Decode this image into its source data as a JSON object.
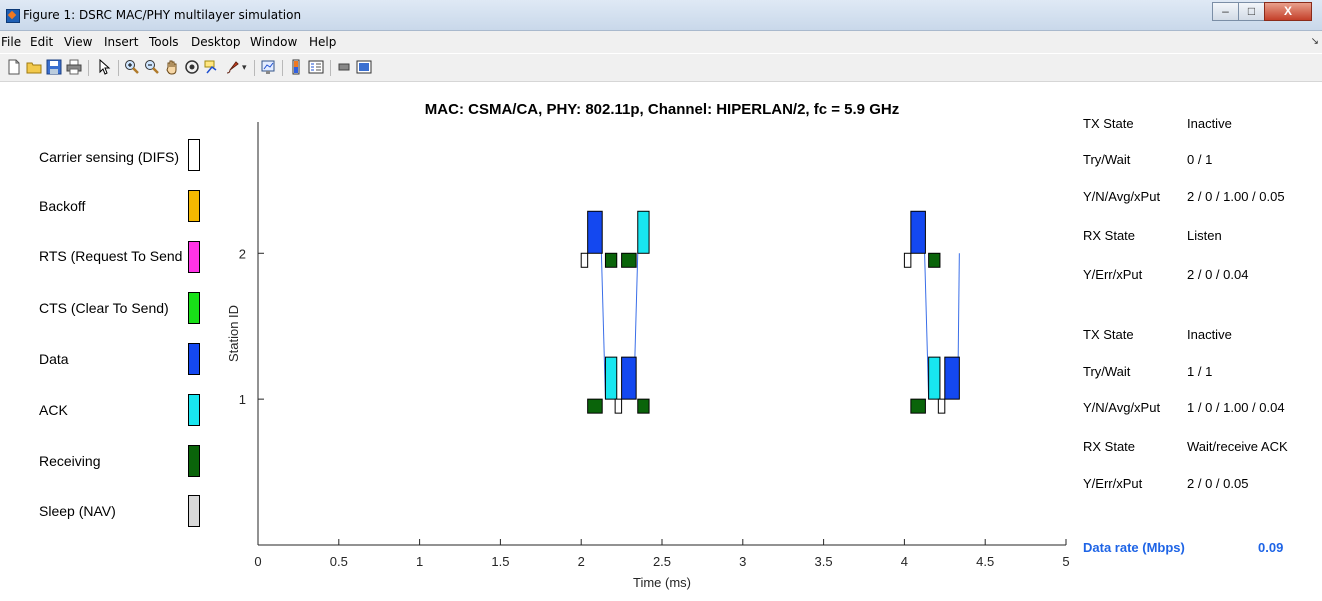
{
  "window": {
    "title": "Figure 1: DSRC MAC/PHY multilayer simulation",
    "controls": [
      "–",
      "□",
      "X"
    ]
  },
  "menu": [
    "File",
    "Edit",
    "View",
    "Insert",
    "Tools",
    "Desktop",
    "Window",
    "Help"
  ],
  "toolbar": [
    {
      "icon": "new-file-icon"
    },
    {
      "icon": "open-folder-icon"
    },
    {
      "icon": "save-icon"
    },
    {
      "icon": "print-icon"
    },
    {
      "icon": "pointer-icon"
    },
    {
      "icon": "zoom-in-icon"
    },
    {
      "icon": "zoom-out-icon"
    },
    {
      "icon": "pan-hand-icon"
    },
    {
      "icon": "rotate-3d-icon"
    },
    {
      "icon": "data-cursor-icon"
    },
    {
      "icon": "brush-icon"
    },
    {
      "icon": "link-plot-icon"
    },
    {
      "icon": "colorbar-icon"
    },
    {
      "icon": "legend-icon"
    },
    {
      "icon": "hide-plot-tools-icon"
    },
    {
      "icon": "show-plot-tools-icon"
    }
  ],
  "legend": [
    {
      "label": "Carrier sensing (DIFS)",
      "color": "#ffffff"
    },
    {
      "label": "Backoff",
      "color": "#f5b800"
    },
    {
      "label": "RTS (Request To Send",
      "color": "#ff33e6"
    },
    {
      "label": "CTS (Clear To Send)",
      "color": "#18e018"
    },
    {
      "label": "Data",
      "color": "#1448f0"
    },
    {
      "label": "ACK",
      "color": "#18e6f0"
    },
    {
      "label": "Receiving",
      "color": "#0a640a"
    },
    {
      "label": "Sleep (NAV)",
      "color": "#d8d8d8"
    }
  ],
  "chart_data": {
    "type": "timeline",
    "title": "MAC: CSMA/CA, PHY: 802.11p, Channel: HIPERLAN/2, fc = 5.9 GHz",
    "xlabel": "Time (ms)",
    "ylabel": "Station ID",
    "xlim": [
      0,
      5
    ],
    "xticks": [
      0,
      0.5,
      1,
      1.5,
      2,
      2.5,
      3,
      3.5,
      4,
      4.5,
      5
    ],
    "yticks": [
      1,
      2
    ],
    "ylim": [
      0,
      2.9
    ],
    "grid": false,
    "segments": [
      {
        "station": 2,
        "state": "Carrier sensing (DIFS)",
        "start": 2.0,
        "end": 2.04,
        "level": "low"
      },
      {
        "station": 2,
        "state": "Data",
        "start": 2.04,
        "end": 2.13,
        "level": "high"
      },
      {
        "station": 2,
        "state": "Receiving",
        "start": 2.15,
        "end": 2.22,
        "level": "low"
      },
      {
        "station": 2,
        "state": "Receiving",
        "start": 2.25,
        "end": 2.34,
        "level": "low"
      },
      {
        "station": 2,
        "state": "ACK",
        "start": 2.35,
        "end": 2.42,
        "level": "high"
      },
      {
        "station": 1,
        "state": "Receiving",
        "start": 2.04,
        "end": 2.13,
        "level": "low"
      },
      {
        "station": 1,
        "state": "ACK",
        "start": 2.15,
        "end": 2.22,
        "level": "high"
      },
      {
        "station": 1,
        "state": "Carrier sensing (DIFS)",
        "start": 2.21,
        "end": 2.25,
        "level": "low"
      },
      {
        "station": 1,
        "state": "Data",
        "start": 2.25,
        "end": 2.34,
        "level": "high"
      },
      {
        "station": 1,
        "state": "Receiving",
        "start": 2.35,
        "end": 2.42,
        "level": "low"
      },
      {
        "station": 2,
        "state": "Carrier sensing (DIFS)",
        "start": 4.0,
        "end": 4.04,
        "level": "low"
      },
      {
        "station": 2,
        "state": "Data",
        "start": 4.04,
        "end": 4.13,
        "level": "high"
      },
      {
        "station": 2,
        "state": "Receiving",
        "start": 4.15,
        "end": 4.22,
        "level": "low"
      },
      {
        "station": 1,
        "state": "Receiving",
        "start": 4.04,
        "end": 4.13,
        "level": "low"
      },
      {
        "station": 1,
        "state": "ACK",
        "start": 4.15,
        "end": 4.22,
        "level": "high"
      },
      {
        "station": 1,
        "state": "Carrier sensing (DIFS)",
        "start": 4.21,
        "end": 4.25,
        "level": "low"
      },
      {
        "station": 1,
        "state": "Data",
        "start": 4.25,
        "end": 4.34,
        "level": "high"
      }
    ],
    "links": [
      {
        "from": 2,
        "to": 1,
        "t1": 2.125,
        "t2": 2.15
      },
      {
        "from": 1,
        "to": 2,
        "t1": 2.325,
        "t2": 2.35
      },
      {
        "from": 2,
        "to": 1,
        "t1": 4.125,
        "t2": 4.15
      },
      {
        "from": 1,
        "to": 2,
        "t1": 4.33,
        "t2": 4.34
      }
    ]
  },
  "stations_panel": [
    {
      "rows": [
        {
          "label": "TX State",
          "value": "Inactive"
        },
        {
          "label": "Try/Wait",
          "value": "0 / 1"
        },
        {
          "label": "Y/N/Avg/xPut",
          "value": "2 / 0 / 1.00 / 0.05"
        },
        {
          "label": "RX State",
          "value": "Listen"
        },
        {
          "label": "Y/Err/xPut",
          "value": "2 / 0 / 0.04"
        }
      ]
    },
    {
      "rows": [
        {
          "label": "TX State",
          "value": "Inactive"
        },
        {
          "label": "Try/Wait",
          "value": "1 / 1"
        },
        {
          "label": "Y/N/Avg/xPut",
          "value": "1 / 0 / 1.00 / 0.04"
        },
        {
          "label": "RX State",
          "value": "Wait/receive ACK"
        },
        {
          "label": "Y/Err/xPut",
          "value": "2 / 0 / 0.05"
        }
      ]
    }
  ],
  "data_rate": {
    "label": "Data rate (Mbps)",
    "value": "0.09"
  }
}
